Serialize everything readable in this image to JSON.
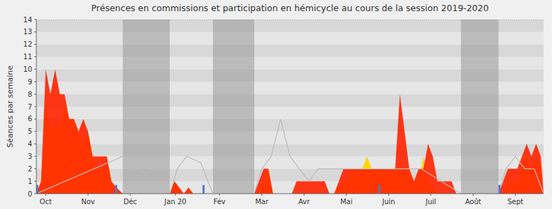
{
  "chart_data": {
    "type": "area",
    "title": "Présences en commissions et participation en hémicycle au cours de la session 2019-2020",
    "y_label": "Séances par semaine",
    "xlim": [
      0,
      54
    ],
    "xticks": [
      {
        "value": 1.0,
        "label": "Oct"
      },
      {
        "value": 5.5,
        "label": "Nov"
      },
      {
        "value": 10.0,
        "label": "Déc"
      },
      {
        "value": 14.8,
        "label": "Jan 20"
      },
      {
        "value": 19.5,
        "label": "Fév"
      },
      {
        "value": 24.0,
        "label": "Mar"
      },
      {
        "value": 28.5,
        "label": "Avr"
      },
      {
        "value": 33.0,
        "label": "Mai"
      },
      {
        "value": 37.5,
        "label": "Juin"
      },
      {
        "value": 42.0,
        "label": "Juil"
      },
      {
        "value": 46.5,
        "label": "Août"
      },
      {
        "value": 51.0,
        "label": "Sept"
      }
    ],
    "ylim": [
      0,
      14
    ],
    "yticks": [
      0,
      1,
      2,
      3,
      4,
      5,
      6,
      7,
      8,
      9,
      10,
      11,
      12,
      13,
      14
    ],
    "grid": true,
    "series": [
      {
        "type": "span",
        "color": "#999999",
        "values": [
          [
            9.2,
            14.2
          ],
          [
            18.8,
            23.2
          ],
          [
            45.2,
            49.2
          ]
        ]
      },
      {
        "type": "area",
        "color": "#FFD700",
        "x": [
          0,
          0.5,
          1.0,
          1.5,
          2.0,
          2.5,
          3.0,
          3.5,
          4.0,
          4.5,
          5.0,
          5.5,
          6.0,
          6.5,
          7.0,
          7.5,
          8.0,
          8.5,
          9.2,
          14.2,
          14.7,
          15.2,
          15.7,
          16.2,
          16.7,
          17.2,
          17.7,
          18.8,
          23.2,
          23.7,
          24.2,
          24.7,
          25.2,
          25.7,
          26.2,
          26.7,
          27.2,
          27.7,
          28.2,
          28.7,
          29.2,
          29.7,
          30.2,
          30.7,
          31.2,
          31.7,
          32.2,
          32.7,
          33.2,
          33.7,
          34.2,
          34.7,
          35.2,
          35.7,
          36.2,
          36.7,
          37.2,
          37.7,
          38.2,
          38.7,
          39.2,
          39.7,
          40.2,
          40.7,
          41.2,
          41.7,
          42.2,
          42.7,
          43.2,
          43.7,
          44.2,
          44.7,
          45.2,
          49.2,
          49.7,
          50.2,
          50.7,
          51.2,
          51.7,
          52.2,
          52.7,
          53.2,
          53.7,
          54.0
        ],
        "values": [
          0,
          1,
          7,
          5,
          6,
          5,
          7,
          6,
          6,
          5,
          4,
          5,
          3,
          2,
          2,
          3,
          1,
          0.5,
          0,
          0,
          1,
          0.3,
          0,
          0.3,
          0,
          0,
          0,
          0,
          0,
          0.5,
          1,
          2,
          0,
          0,
          0,
          0,
          0,
          0,
          0,
          0,
          0,
          0,
          0,
          0,
          0,
          0,
          0.5,
          1,
          1,
          2,
          2,
          2,
          3,
          2,
          2,
          2,
          2,
          2,
          2,
          2,
          2,
          2,
          1,
          1,
          3,
          1,
          0.5,
          0,
          0,
          0,
          0,
          0,
          0,
          0,
          0,
          1,
          1,
          1,
          2,
          3,
          2,
          3,
          2,
          0
        ]
      },
      {
        "type": "area",
        "color": "#FF2200",
        "x": [
          0,
          0.5,
          1.0,
          1.5,
          2.0,
          2.5,
          3.0,
          3.5,
          4.0,
          4.5,
          5.0,
          5.5,
          6.0,
          6.5,
          7.0,
          7.5,
          8.0,
          8.5,
          9.2,
          14.2,
          14.7,
          15.2,
          15.7,
          16.2,
          16.7,
          17.2,
          17.7,
          18.8,
          23.2,
          23.7,
          24.2,
          24.7,
          25.2,
          25.7,
          26.2,
          26.7,
          27.2,
          27.7,
          28.2,
          28.7,
          29.2,
          29.7,
          30.2,
          30.7,
          31.2,
          31.7,
          32.2,
          32.7,
          33.2,
          33.7,
          34.2,
          34.7,
          35.2,
          35.7,
          36.2,
          36.7,
          37.2,
          37.7,
          38.2,
          38.7,
          39.2,
          39.7,
          40.2,
          40.7,
          41.2,
          41.7,
          42.2,
          42.7,
          43.2,
          43.7,
          44.2,
          44.7,
          45.2,
          49.2,
          49.7,
          50.2,
          50.7,
          51.2,
          51.7,
          52.2,
          52.7,
          53.2,
          53.7,
          54.0
        ],
        "values": [
          0,
          1,
          10,
          8,
          10,
          8,
          8,
          6,
          6,
          5,
          6,
          5,
          3,
          3,
          3,
          3,
          1,
          0.5,
          0,
          0,
          1,
          0.5,
          0,
          0.5,
          0,
          0,
          0,
          0,
          0,
          1,
          2,
          2,
          0,
          0,
          0,
          0,
          0,
          1,
          1,
          1,
          1,
          1,
          1,
          1,
          0,
          0,
          1,
          2,
          2,
          2,
          2,
          2,
          2,
          2,
          2,
          2,
          2,
          2,
          2,
          8,
          5,
          2,
          1,
          2,
          2,
          4,
          3,
          1,
          1,
          1,
          1,
          0,
          0,
          0,
          1,
          2,
          2,
          2,
          3,
          4,
          3,
          4,
          3,
          0
        ]
      },
      {
        "type": "line",
        "color": "#bbbbbb",
        "x": [
          0,
          9.2,
          14.2,
          15.0,
          16.0,
          17.5,
          18.8,
          23.2,
          24.0,
          25.0,
          26.0,
          27.0,
          28.0,
          29.0,
          30.0,
          31.0,
          32.0,
          33.0,
          34.0,
          35.0,
          36.0,
          37.0,
          38.0,
          39.0,
          40.0,
          41.0,
          45.2,
          49.2,
          50.0,
          51.0,
          52.0,
          53.0,
          54.0
        ],
        "values": [
          0,
          3,
          0,
          2,
          3,
          2.5,
          0,
          0,
          2,
          3,
          6,
          3,
          2,
          1,
          2,
          2,
          2,
          2,
          2,
          2,
          2,
          2,
          2,
          2,
          2,
          2,
          0,
          0,
          2,
          3,
          2,
          2,
          0
        ]
      },
      {
        "type": "bar",
        "color": "#5577cc",
        "x": [
          0.1,
          8.5,
          17.8,
          36.5,
          49.3
        ],
        "values": [
          0.7,
          0.7,
          0.7,
          0.7,
          0.7
        ]
      },
      {
        "type": "hline",
        "color": "#888888",
        "line_style": "dotted",
        "values": [
          14
        ]
      }
    ]
  }
}
